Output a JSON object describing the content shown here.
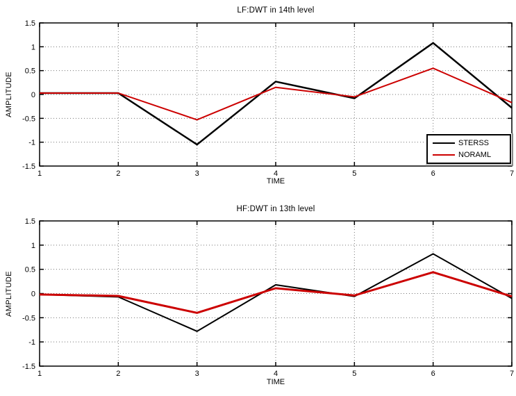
{
  "figure": {
    "background": "#ffffff",
    "frame_color": "#000000",
    "grid_color": "#000000"
  },
  "chart_data": [
    {
      "type": "line",
      "title": "LF:DWT in 14th level",
      "xlabel": "TIME",
      "ylabel": "AMPLITUDE",
      "xlim": [
        1,
        7
      ],
      "ylim": [
        -1.5,
        1.5
      ],
      "x": [
        1,
        2,
        3,
        4,
        5,
        6,
        7
      ],
      "xticks": [
        1,
        2,
        3,
        4,
        5,
        6,
        7
      ],
      "xtick_labels": [
        "1",
        "2",
        "3",
        "4",
        "5",
        "6",
        "7"
      ],
      "yticks": [
        1.5,
        1,
        0.5,
        0,
        -0.5,
        -1,
        -1.5
      ],
      "ytick_labels": [
        "1.5",
        "1",
        "0.5",
        "0",
        "-0.5",
        "-1",
        "-1.5"
      ],
      "grid": true,
      "legend": {
        "position": "lower right",
        "entries": [
          "STERSS",
          "NORAML"
        ]
      },
      "series": [
        {
          "name": "STERSS",
          "color": "#000000",
          "width": 2.5,
          "values": [
            0.03,
            0.03,
            -1.05,
            0.27,
            -0.08,
            1.08,
            -0.28
          ]
        },
        {
          "name": "NORAML",
          "color": "#cc0000",
          "width": 2,
          "values": [
            0.03,
            0.03,
            -0.53,
            0.15,
            -0.05,
            0.55,
            -0.17
          ]
        }
      ]
    },
    {
      "type": "line",
      "title": "HF:DWT in 13th level",
      "xlabel": "TIME",
      "ylabel": "AMPLITUDE",
      "xlim": [
        1,
        7
      ],
      "ylim": [
        -1.5,
        1.5
      ],
      "x": [
        1,
        2,
        3,
        4,
        5,
        6,
        7
      ],
      "xticks": [
        1,
        2,
        3,
        4,
        5,
        6,
        7
      ],
      "xtick_labels": [
        "1",
        "2",
        "3",
        "4",
        "5",
        "6",
        "7"
      ],
      "yticks": [
        1.5,
        1,
        0.5,
        0,
        -0.5,
        -1,
        -1.5
      ],
      "ytick_labels": [
        "1.5",
        "1",
        "0.5",
        "0",
        "-0.5",
        "-1",
        "-1.5"
      ],
      "grid": true,
      "legend": null,
      "series": [
        {
          "name": "STERSS",
          "color": "#000000",
          "width": 2,
          "values": [
            -0.02,
            -0.07,
            -0.78,
            0.18,
            -0.06,
            0.82,
            -0.1
          ]
        },
        {
          "name": "NORAML",
          "color": "#cc0000",
          "width": 3,
          "values": [
            -0.02,
            -0.05,
            -0.4,
            0.11,
            -0.04,
            0.44,
            -0.06
          ]
        }
      ]
    }
  ]
}
